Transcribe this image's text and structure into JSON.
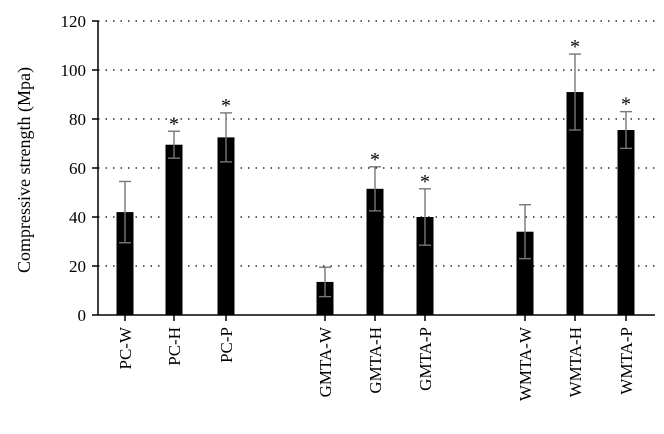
{
  "chart_data": {
    "type": "bar",
    "title": "",
    "xlabel": "",
    "ylabel": "Compressive strength (Mpa)",
    "ylim": [
      0,
      120
    ],
    "yticks": [
      "0",
      "20",
      "40",
      "60",
      "80",
      "100",
      "120"
    ],
    "grid": "horizontal-dotted",
    "categories": [
      "PC-W",
      "PC-H",
      "PC-P",
      "GMTA-W",
      "GMTA-H",
      "GMTA-P",
      "WMTA-W",
      "WMTA-H",
      "WMTA-P"
    ],
    "groups": [
      [
        "PC-W",
        "PC-H",
        "PC-P"
      ],
      [
        "GMTA-W",
        "GMTA-H",
        "GMTA-P"
      ],
      [
        "WMTA-W",
        "WMTA-H",
        "WMTA-P"
      ]
    ],
    "values": [
      42,
      69.5,
      72.5,
      13.5,
      51.5,
      40,
      34,
      91,
      75.5
    ],
    "error": [
      12.5,
      5.5,
      10,
      6,
      9,
      11.5,
      11,
      15.5,
      7.5
    ],
    "significant": [
      false,
      true,
      true,
      false,
      true,
      true,
      false,
      true,
      true
    ],
    "significance_marker": "*",
    "colors": {
      "bar": "#000000",
      "error_bar": "#777777",
      "axis": "#000000"
    }
  }
}
